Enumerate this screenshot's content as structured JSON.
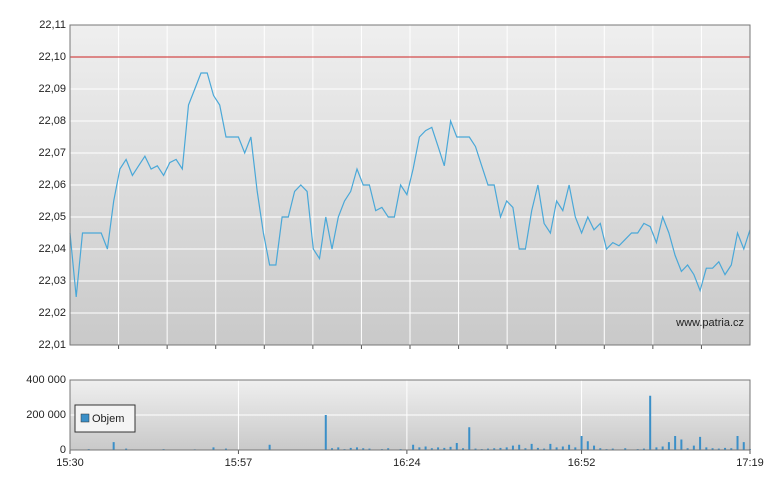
{
  "chart_data": [
    {
      "type": "line",
      "x": [
        "15:30",
        "15:31",
        "15:32",
        "15:33",
        "15:34",
        "15:35",
        "15:36",
        "15:37",
        "15:38",
        "15:39",
        "15:40",
        "15:41",
        "15:42",
        "15:43",
        "15:44",
        "15:45",
        "15:46",
        "15:47",
        "15:48",
        "15:49",
        "15:50",
        "15:51",
        "15:52",
        "15:53",
        "15:54",
        "15:55",
        "15:56",
        "15:57",
        "15:58",
        "15:59",
        "16:00",
        "16:01",
        "16:02",
        "16:03",
        "16:04",
        "16:05",
        "16:06",
        "16:07",
        "16:08",
        "16:09",
        "16:10",
        "16:11",
        "16:12",
        "16:13",
        "16:14",
        "16:15",
        "16:16",
        "16:17",
        "16:18",
        "16:19",
        "16:20",
        "16:21",
        "16:22",
        "16:23",
        "16:24",
        "16:25",
        "16:26",
        "16:27",
        "16:28",
        "16:29",
        "16:30",
        "16:31",
        "16:32",
        "16:33",
        "16:34",
        "16:35",
        "16:36",
        "16:37",
        "16:38",
        "16:39",
        "16:40",
        "16:41",
        "16:42",
        "16:43",
        "16:44",
        "16:45",
        "16:46",
        "16:47",
        "16:48",
        "16:49",
        "16:50",
        "16:51",
        "16:52",
        "16:53",
        "16:54",
        "16:55",
        "16:56",
        "16:57",
        "16:58",
        "16:59",
        "17:00",
        "17:01",
        "17:02",
        "17:03",
        "17:04",
        "17:05",
        "17:06",
        "17:07",
        "17:08",
        "17:09",
        "17:10",
        "17:11",
        "17:12",
        "17:13",
        "17:14",
        "17:15",
        "17:16",
        "17:17",
        "17:18",
        "17:19"
      ],
      "series": [
        {
          "color": "#4aa8d8",
          "values": [
            22.045,
            22.025,
            22.045,
            22.045,
            22.045,
            22.045,
            22.04,
            22.055,
            22.065,
            22.068,
            22.063,
            22.066,
            22.069,
            22.065,
            22.066,
            22.063,
            22.067,
            22.068,
            22.065,
            22.085,
            22.09,
            22.095,
            22.095,
            22.088,
            22.085,
            22.075,
            22.075,
            22.075,
            22.07,
            22.075,
            22.058,
            22.045,
            22.035,
            22.035,
            22.05,
            22.05,
            22.058,
            22.06,
            22.058,
            22.04,
            22.037,
            22.05,
            22.04,
            22.05,
            22.055,
            22.058,
            22.065,
            22.06,
            22.06,
            22.052,
            22.053,
            22.05,
            22.05,
            22.06,
            22.057,
            22.065,
            22.075,
            22.077,
            22.078,
            22.072,
            22.066,
            22.08,
            22.075,
            22.075,
            22.075,
            22.072,
            22.066,
            22.06,
            22.06,
            22.05,
            22.055,
            22.053,
            22.04,
            22.04,
            22.052,
            22.06,
            22.048,
            22.045,
            22.055,
            22.052,
            22.06,
            22.05,
            22.045,
            22.05,
            22.046,
            22.048,
            22.04,
            22.042,
            22.041,
            22.043,
            22.045,
            22.045,
            22.048,
            22.047,
            22.042,
            22.05,
            22.045,
            22.038,
            22.033,
            22.035,
            22.032,
            22.027,
            22.034,
            22.034,
            22.036,
            22.032,
            22.035,
            22.045,
            22.04,
            22.046
          ]
        }
      ],
      "ylim": [
        22.01,
        22.11
      ],
      "yticks": [
        {
          "value": 22.01,
          "label": "22,01"
        },
        {
          "value": 22.02,
          "label": "22,02"
        },
        {
          "value": 22.03,
          "label": "22,03"
        },
        {
          "value": 22.04,
          "label": "22,04"
        },
        {
          "value": 22.05,
          "label": "22,05"
        },
        {
          "value": 22.06,
          "label": "22,06"
        },
        {
          "value": 22.07,
          "label": "22,07"
        },
        {
          "value": 22.08,
          "label": "22,08"
        },
        {
          "value": 22.09,
          "label": "22,09"
        },
        {
          "value": 22.1,
          "label": "22,10"
        },
        {
          "value": 22.11,
          "label": "22,11"
        }
      ],
      "reference_line": {
        "value": 22.1,
        "color": "#cc2222"
      },
      "watermark": "www.patria.cz",
      "grid": true
    },
    {
      "type": "bar",
      "x": [
        "15:30",
        "15:31",
        "15:32",
        "15:33",
        "15:34",
        "15:35",
        "15:36",
        "15:37",
        "15:38",
        "15:39",
        "15:40",
        "15:41",
        "15:42",
        "15:43",
        "15:44",
        "15:45",
        "15:46",
        "15:47",
        "15:48",
        "15:49",
        "15:50",
        "15:51",
        "15:52",
        "15:53",
        "15:54",
        "15:55",
        "15:56",
        "15:57",
        "15:58",
        "15:59",
        "16:00",
        "16:01",
        "16:02",
        "16:03",
        "16:04",
        "16:05",
        "16:06",
        "16:07",
        "16:08",
        "16:09",
        "16:10",
        "16:11",
        "16:12",
        "16:13",
        "16:14",
        "16:15",
        "16:16",
        "16:17",
        "16:18",
        "16:19",
        "16:20",
        "16:21",
        "16:22",
        "16:23",
        "16:24",
        "16:25",
        "16:26",
        "16:27",
        "16:28",
        "16:29",
        "16:30",
        "16:31",
        "16:32",
        "16:33",
        "16:34",
        "16:35",
        "16:36",
        "16:37",
        "16:38",
        "16:39",
        "16:40",
        "16:41",
        "16:42",
        "16:43",
        "16:44",
        "16:45",
        "16:46",
        "16:47",
        "16:48",
        "16:49",
        "16:50",
        "16:51",
        "16:52",
        "16:53",
        "16:54",
        "16:55",
        "16:56",
        "16:57",
        "16:58",
        "16:59",
        "17:00",
        "17:01",
        "17:02",
        "17:03",
        "17:04",
        "17:05",
        "17:06",
        "17:07",
        "17:08",
        "17:09",
        "17:10",
        "17:11",
        "17:12",
        "17:13",
        "17:14",
        "17:15",
        "17:16",
        "17:17",
        "17:18",
        "17:19"
      ],
      "series": [
        {
          "name": "Objem",
          "color": "#3a8fc8",
          "values": [
            0,
            3000,
            0,
            5000,
            0,
            2000,
            0,
            45000,
            0,
            8000,
            3000,
            0,
            0,
            0,
            2000,
            5000,
            0,
            0,
            0,
            0,
            4000,
            0,
            0,
            15000,
            2000,
            8000,
            0,
            0,
            0,
            0,
            0,
            0,
            30000,
            0,
            0,
            0,
            0,
            0,
            0,
            0,
            0,
            200000,
            10000,
            15000,
            5000,
            12000,
            15000,
            10000,
            8000,
            0,
            5000,
            10000,
            0,
            5000,
            0,
            30000,
            15000,
            20000,
            10000,
            15000,
            12000,
            18000,
            40000,
            10000,
            130000,
            8000,
            5000,
            8000,
            10000,
            12000,
            15000,
            25000,
            30000,
            10000,
            35000,
            12000,
            8000,
            35000,
            15000,
            20000,
            30000,
            15000,
            80000,
            50000,
            25000,
            10000,
            5000,
            8000,
            0,
            10000,
            0,
            5000,
            8000,
            310000,
            15000,
            20000,
            45000,
            80000,
            60000,
            10000,
            25000,
            75000,
            15000,
            10000,
            8000,
            12000,
            10000,
            80000,
            45000,
            5000
          ]
        }
      ],
      "ylim": [
        0,
        400000
      ],
      "yticks": [
        0,
        {
          "value": 200000,
          "label": "200 000"
        },
        {
          "value": 400000,
          "label": "400 000"
        }
      ],
      "xticks": [
        "15:30",
        "15:57",
        "16:24",
        "16:52",
        "17:19"
      ],
      "legend": "upper-left",
      "grid": true
    }
  ]
}
